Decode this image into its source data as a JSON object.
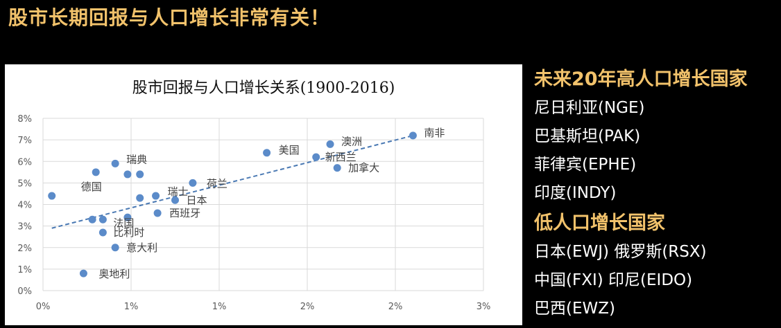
{
  "headline": "股市长期回报与人口增长非常有关！",
  "colors": {
    "accent": "#f2c26b",
    "marker": "#5b8bc9",
    "trend": "#4a79b3"
  },
  "side_panel": {
    "high_title": "未来20年高人口增长国家",
    "high_items": [
      "尼日利亚(NGE)",
      "巴基斯坦(PAK)",
      "菲律宾(EPHE)",
      "印度(INDY)"
    ],
    "low_title": "低人口增长国家",
    "low_items": [
      "日本(EWJ) 俄罗斯(RSX)",
      "中国(FXI) 印尼(EIDO)",
      "巴西(EWZ)"
    ]
  },
  "chart_data": {
    "type": "scatter",
    "title": "股市回报与人口增长关系(1900-2016)",
    "xlabel": "",
    "ylabel": "",
    "xlim": [
      0,
      0.025
    ],
    "ylim": [
      0,
      0.08
    ],
    "x_ticks": [
      "0%",
      "1%",
      "1%",
      "2%",
      "2%",
      "3%"
    ],
    "y_ticks": [
      "0%",
      "1%",
      "2%",
      "3%",
      "4%",
      "5%",
      "6%",
      "7%",
      "8%"
    ],
    "grid": true,
    "trendline": {
      "style": "dashed",
      "start": [
        0.0005,
        0.029
      ],
      "end": [
        0.021,
        0.072
      ]
    },
    "points": [
      {
        "x": 0.0005,
        "y": 0.044,
        "label": ""
      },
      {
        "x": 0.0023,
        "y": 0.008,
        "label": "奥地利"
      },
      {
        "x": 0.0028,
        "y": 0.033,
        "label": ""
      },
      {
        "x": 0.003,
        "y": 0.055,
        "label": ""
      },
      {
        "x": 0.0034,
        "y": 0.033,
        "label": "法国"
      },
      {
        "x": 0.0034,
        "y": 0.027,
        "label": "比利时"
      },
      {
        "x": 0.0041,
        "y": 0.059,
        "label": "瑞典"
      },
      {
        "x": 0.0041,
        "y": 0.02,
        "label": "意大利"
      },
      {
        "x": 0.0048,
        "y": 0.034,
        "label": ""
      },
      {
        "x": 0.0048,
        "y": 0.054,
        "label": ""
      },
      {
        "x": 0.0055,
        "y": 0.054,
        "label": ""
      },
      {
        "x": 0.0055,
        "y": 0.043,
        "label": "德国"
      },
      {
        "x": 0.0064,
        "y": 0.044,
        "label": "瑞士"
      },
      {
        "x": 0.0065,
        "y": 0.036,
        "label": "西班牙"
      },
      {
        "x": 0.0075,
        "y": 0.042,
        "label": "日本"
      },
      {
        "x": 0.0085,
        "y": 0.05,
        "label": "荷兰"
      },
      {
        "x": 0.0127,
        "y": 0.064,
        "label": "美国"
      },
      {
        "x": 0.0155,
        "y": 0.062,
        "label": "新西兰"
      },
      {
        "x": 0.0163,
        "y": 0.068,
        "label": "澳洲"
      },
      {
        "x": 0.0167,
        "y": 0.057,
        "label": "加拿大"
      },
      {
        "x": 0.021,
        "y": 0.072,
        "label": "南非"
      }
    ]
  }
}
